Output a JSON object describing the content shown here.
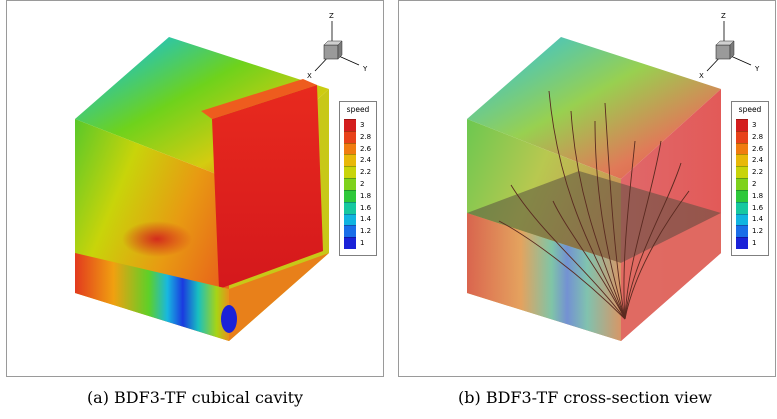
{
  "figures": [
    {
      "id": "a",
      "caption": "(a) BDF3-TF cubical cavity",
      "legend": {
        "title": "speed",
        "ticks": [
          "3",
          "2.8",
          "2.6",
          "2.4",
          "2.2",
          "2",
          "1.8",
          "1.6",
          "1.4",
          "1.2",
          "1"
        ]
      },
      "axes": {
        "z": "Z",
        "x": "X",
        "y": "Y"
      }
    },
    {
      "id": "b",
      "caption": "(b) BDF3-TF cross-section view",
      "legend": {
        "title": "speed",
        "ticks": [
          "3",
          "2.8",
          "2.6",
          "2.4",
          "2.2",
          "2",
          "1.8",
          "1.6",
          "1.4",
          "1.2",
          "1"
        ]
      },
      "axes": {
        "z": "Z",
        "x": "X",
        "y": "Y"
      }
    }
  ],
  "colorscale": [
    "#d41e1e",
    "#e8421a",
    "#f07c10",
    "#e8b808",
    "#c8d40a",
    "#7ed21c",
    "#2ec83a",
    "#16c8a0",
    "#10b4e0",
    "#1a6ee8",
    "#1a22d8"
  ]
}
